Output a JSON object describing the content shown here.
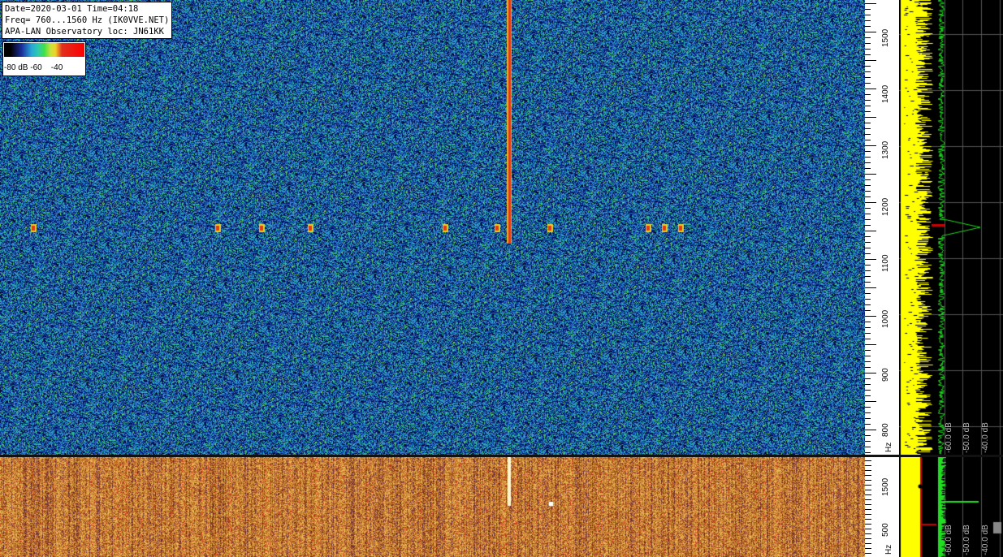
{
  "info": {
    "line1": "Date=2020-03-01 Time=04:18",
    "line2": "Freq= 760...1560 Hz (IK0VVE.NET)",
    "line3": "APA-LAN Observatory loc: JN61KK"
  },
  "colorbar": {
    "label": "-80 dB -60    -40"
  },
  "freq_scale_top": {
    "labels": [
      "1500",
      "1400",
      "1300",
      "1200",
      "1100",
      "1000",
      "900",
      "800"
    ],
    "unit": "Hz",
    "range_hz": [
      760,
      1560
    ]
  },
  "freq_scale_bottom": {
    "labels": [
      "1500",
      "500"
    ],
    "unit": "Hz"
  },
  "spectrum_top": {
    "db_labels": [
      "-60.0 dB",
      "-50.0 dB",
      "-40.0 dB"
    ],
    "peak_freq_hz": 1160
  },
  "spectrum_bottom": {
    "db_labels": [
      "-60.0 dB",
      "-50.0 dB",
      "-40.0 dB"
    ]
  },
  "colors": {
    "trace_yellow": "#ffff00",
    "trace_green": "#22dd22",
    "grid": "#555555",
    "carrier": "#e03a1a"
  }
}
